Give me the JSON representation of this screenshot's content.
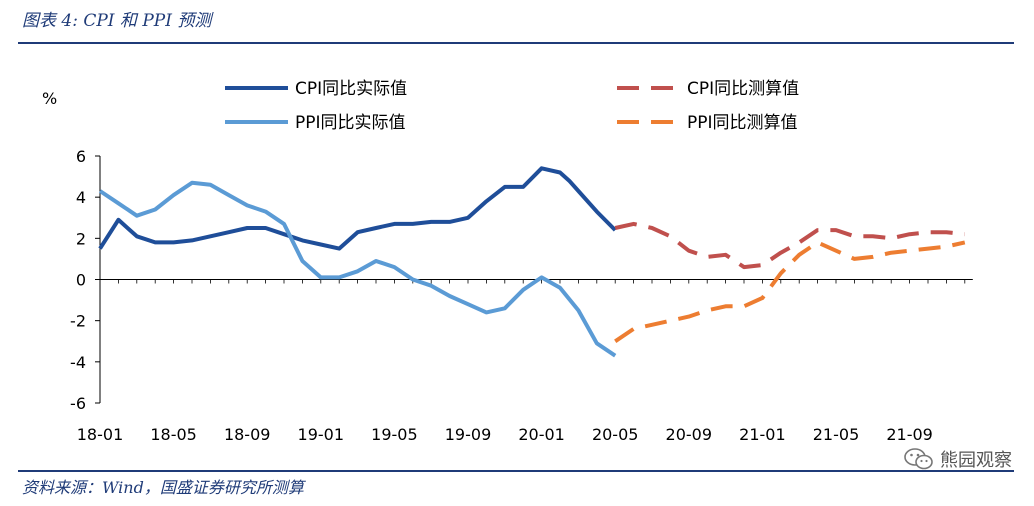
{
  "caption": "图表 4:  CPI 和 PPI 预测",
  "source": "资料来源：Wind，国盛证券研究所测算",
  "watermark": "熊园观察",
  "chart_data": {
    "type": "line",
    "ylabel": "%",
    "ylim": [
      -6,
      6
    ],
    "yticks": [
      6,
      4,
      2,
      0,
      -2,
      -4,
      -6
    ],
    "xlabels": [
      "18-01",
      "18-05",
      "18-09",
      "19-01",
      "19-05",
      "19-09",
      "20-01",
      "20-05",
      "20-09",
      "21-01",
      "21-05",
      "21-09"
    ],
    "xlim": [
      0,
      47
    ],
    "series": [
      {
        "name": "CPI同比实际值",
        "color": "#1f4e99",
        "dash": false,
        "x": [
          0,
          1,
          2,
          3,
          4,
          5,
          6,
          7,
          8,
          9,
          10,
          11,
          12,
          13,
          14,
          15,
          16,
          17,
          18,
          19,
          20,
          21,
          22,
          23,
          24,
          25,
          25.5,
          26,
          27,
          28
        ],
        "y": [
          1.5,
          2.9,
          2.1,
          1.8,
          1.8,
          1.9,
          2.1,
          2.3,
          2.5,
          2.5,
          2.2,
          1.9,
          1.7,
          1.5,
          2.3,
          2.5,
          2.7,
          2.7,
          2.8,
          2.8,
          3.0,
          3.8,
          4.5,
          4.5,
          5.4,
          5.2,
          4.8,
          4.3,
          3.3,
          2.4
        ]
      },
      {
        "name": "PPI同比实际值",
        "color": "#5b9bd5",
        "dash": false,
        "x": [
          0,
          1,
          2,
          3,
          4,
          5,
          6,
          7,
          8,
          9,
          10,
          11,
          12,
          13,
          14,
          15,
          16,
          17,
          18,
          19,
          20,
          21,
          22,
          23,
          24,
          25,
          26,
          27,
          28
        ],
        "y": [
          4.3,
          3.7,
          3.1,
          3.4,
          4.1,
          4.7,
          4.6,
          4.1,
          3.6,
          3.3,
          2.7,
          0.9,
          0.1,
          0.1,
          0.4,
          0.9,
          0.6,
          0.0,
          -0.3,
          -0.8,
          -1.2,
          -1.6,
          -1.4,
          -0.5,
          0.1,
          -0.4,
          -1.5,
          -3.1,
          -3.7
        ]
      },
      {
        "name": "CPI同比测算值",
        "color": "#c0504d",
        "dash": true,
        "x": [
          28,
          29,
          30,
          31,
          32,
          33,
          34,
          35,
          36,
          37,
          38,
          39,
          40,
          41,
          42,
          43,
          44,
          45,
          46,
          47
        ],
        "y": [
          2.5,
          2.7,
          2.5,
          2.1,
          1.4,
          1.1,
          1.2,
          0.6,
          0.7,
          1.3,
          1.8,
          2.4,
          2.4,
          2.1,
          2.1,
          2.0,
          2.2,
          2.3,
          2.3,
          2.2
        ]
      },
      {
        "name": "PPI同比测算值",
        "color": "#ed7d31",
        "dash": true,
        "x": [
          28,
          29,
          30,
          31,
          32,
          33,
          34,
          35,
          36,
          37,
          38,
          39,
          40,
          41,
          42,
          43,
          44,
          45,
          46,
          47
        ],
        "y": [
          -3.0,
          -2.4,
          -2.2,
          -2.0,
          -1.8,
          -1.5,
          -1.3,
          -1.3,
          -0.9,
          0.3,
          1.2,
          1.8,
          1.4,
          1.0,
          1.1,
          1.3,
          1.4,
          1.5,
          1.6,
          1.8
        ]
      }
    ],
    "legend": "top"
  }
}
